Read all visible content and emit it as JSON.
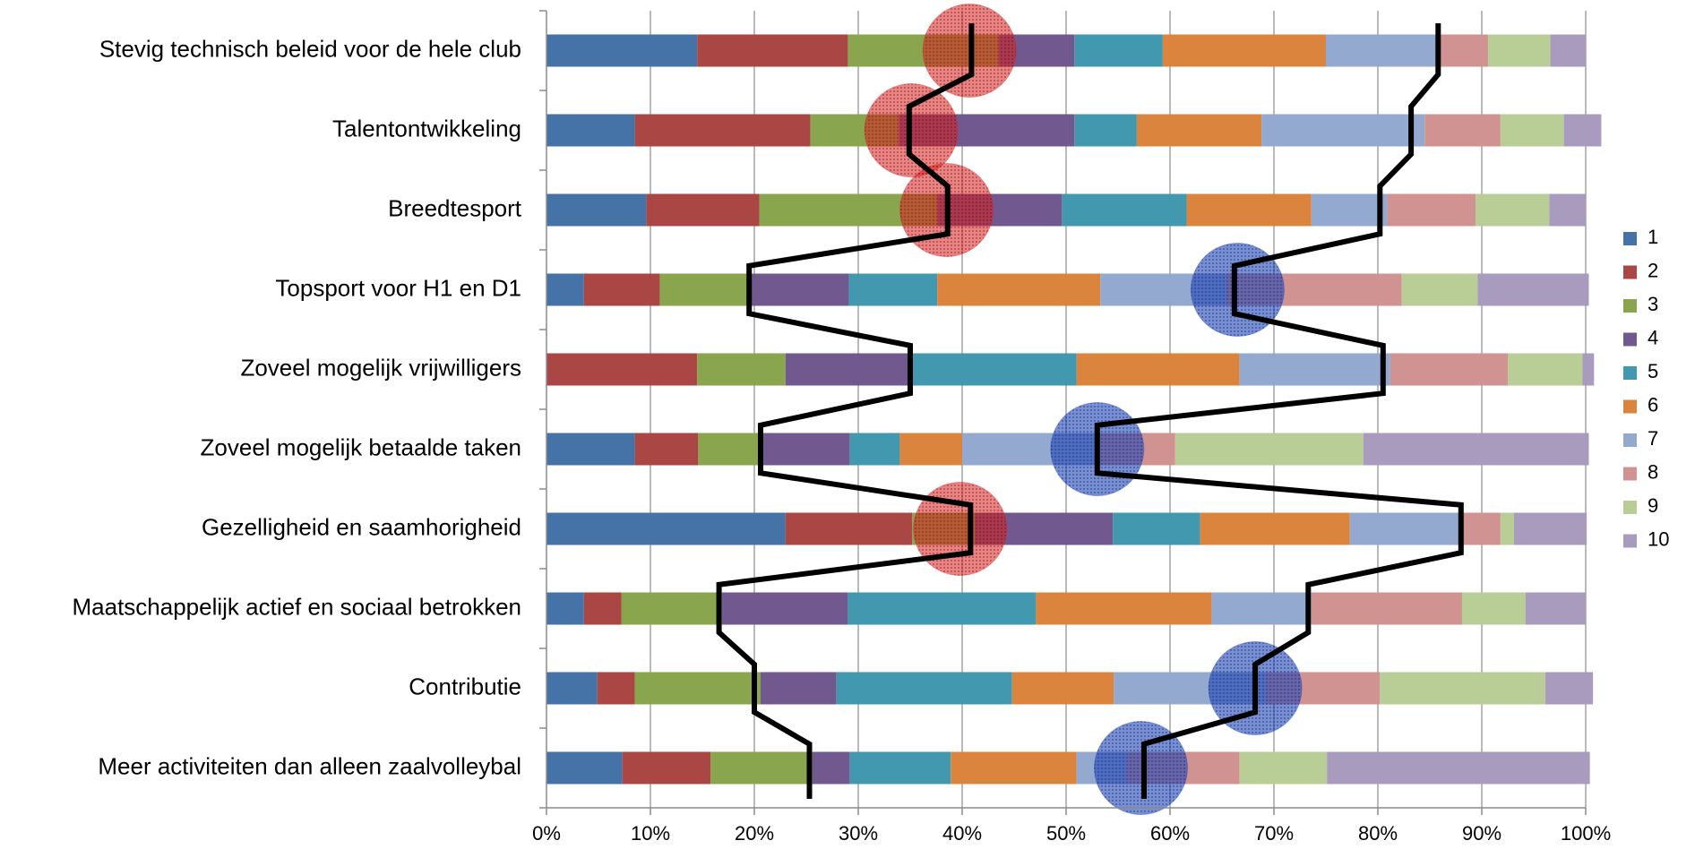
{
  "chart_data": {
    "type": "bar",
    "orientation": "horizontal",
    "stacked": "percent",
    "categories": [
      "Stevig technisch beleid voor de hele club",
      "Talentontwikkeling",
      "Breedtesport",
      "Topsport voor H1 en D1",
      "Zoveel mogelijk vrijwilligers",
      "Zoveel mogelijk betaalde taken",
      "Gezelligheid en saamhorigheid",
      "Maatschappelijk actief en sociaal betrokken",
      "Contributie",
      "Meer activiteiten dan alleen zaalvolleybal"
    ],
    "series": [
      {
        "name": "1",
        "color": "#4572A7",
        "values": [
          14.5,
          8.5,
          9.6,
          3.6,
          0,
          8.5,
          23,
          3.6,
          4.9,
          7.3
        ]
      },
      {
        "name": "2",
        "color": "#AA4643",
        "values": [
          14.5,
          16.9,
          10.9,
          7.3,
          14.5,
          6.1,
          12.2,
          3.6,
          3.6,
          8.5
        ]
      },
      {
        "name": "3",
        "color": "#89A54E",
        "values": [
          14.5,
          8.5,
          17.1,
          8.5,
          8.5,
          6.1,
          6.0,
          9.7,
          12.1,
          9.8
        ]
      },
      {
        "name": "4",
        "color": "#71588F",
        "values": [
          7.3,
          16.9,
          12.0,
          9.7,
          12.2,
          8.5,
          13.3,
          12.1,
          7.3,
          3.6
        ]
      },
      {
        "name": "5",
        "color": "#4198AF",
        "values": [
          8.5,
          6.0,
          12.0,
          8.5,
          15.8,
          4.8,
          8.4,
          18.1,
          16.9,
          9.7
        ]
      },
      {
        "name": "6",
        "color": "#DB843D",
        "values": [
          15.7,
          12.0,
          12.0,
          15.7,
          15.7,
          6.0,
          14.4,
          16.9,
          9.8,
          12.1
        ]
      },
      {
        "name": "7",
        "color": "#93A9CF",
        "values": [
          10.9,
          15.7,
          7.3,
          12.1,
          14.5,
          13.3,
          10.9,
          9.6,
          14.6,
          4.8
        ]
      },
      {
        "name": "8",
        "color": "#D19392",
        "values": [
          4.7,
          7.3,
          8.5,
          16.9,
          11.3,
          7.2,
          3.6,
          14.5,
          11.0,
          10.9
        ]
      },
      {
        "name": "9",
        "color": "#B9CD96",
        "values": [
          6.0,
          6.1,
          7.1,
          7.3,
          7.2,
          18.1,
          1.3,
          6.1,
          15.9,
          8.4
        ]
      },
      {
        "name": "10",
        "color": "#A99BBD",
        "values": [
          3.4,
          3.6,
          3.5,
          10.7,
          1.1,
          21.7,
          7.0,
          5.8,
          4.6,
          25.3
        ]
      }
    ],
    "lower_line": {
      "values": [
        40.9,
        34.9,
        38.6,
        19.5,
        35.0,
        20.6,
        40.8,
        16.6,
        20.0,
        25.3
      ]
    },
    "upper_line": {
      "values": [
        85.8,
        83.2,
        80.2,
        66.2,
        80.5,
        53.0,
        88.0,
        73.3,
        68.2,
        57.5
      ]
    },
    "highlights": [
      {
        "category_index": 0,
        "x": 40.7,
        "color": "#D32020"
      },
      {
        "category_index": 1,
        "x": 35.1,
        "color": "#D32020"
      },
      {
        "category_index": 2,
        "x": 38.5,
        "color": "#D32020"
      },
      {
        "category_index": 3,
        "x": 66.5,
        "color": "#1F45B8"
      },
      {
        "category_index": 5,
        "x": 53.0,
        "color": "#1F45B8"
      },
      {
        "category_index": 6,
        "x": 39.8,
        "color": "#D32020"
      },
      {
        "category_index": 8,
        "x": 68.2,
        "color": "#1F45B8"
      },
      {
        "category_index": 9,
        "x": 57.2,
        "color": "#1F45B8"
      }
    ],
    "xlim": [
      0,
      100
    ],
    "xticks": [
      "0%",
      "10%",
      "20%",
      "30%",
      "40%",
      "50%",
      "60%",
      "70%",
      "80%",
      "90%",
      "100%"
    ],
    "grid": "vertical",
    "legend": "right",
    "title": "",
    "xlabel": "",
    "ylabel": ""
  }
}
